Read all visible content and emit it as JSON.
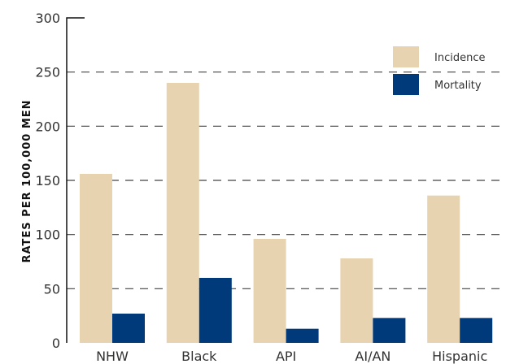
{
  "chart_data": {
    "type": "bar",
    "categories": [
      "NHW",
      "Black",
      "API",
      "AI/AN",
      "Hispanic"
    ],
    "series": [
      {
        "name": "Incidence",
        "values": [
          156,
          240,
          96,
          78,
          136
        ],
        "color": "#e8d3b0"
      },
      {
        "name": "Mortality",
        "values": [
          27,
          60,
          13,
          23,
          23
        ],
        "color": "#003a7a"
      }
    ],
    "title": "",
    "xlabel": "",
    "ylabel": "RATES PER 100,000 MEN",
    "ylim": [
      0,
      300
    ],
    "yticks": [
      0,
      50,
      100,
      150,
      200,
      250,
      300
    ],
    "grid": true,
    "legend_position": "top-right"
  }
}
